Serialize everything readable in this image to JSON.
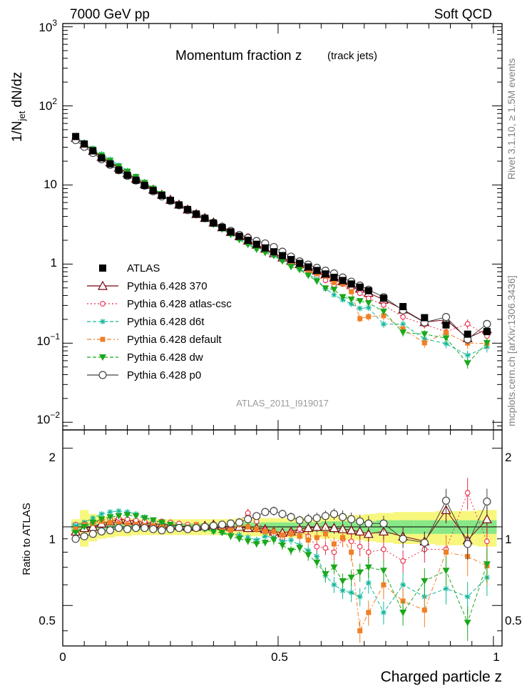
{
  "header": {
    "left": "7000 GeV pp",
    "right": "Soft QCD"
  },
  "title": {
    "main": "Momentum fraction z",
    "sub": "(track jets)"
  },
  "analysis_tag": "ATLAS_2011_I919017",
  "side_labels": {
    "rivet": "Rivet 3.1.10, ≥ 1.5M events",
    "mcplots": "mcplots.cern.ch [arXiv:1306.3436]"
  },
  "axes": {
    "ylabel_top": "1/N",
    "ylabel_top_sub": "jet",
    "ylabel_top_rest": " dN/dz",
    "ylabel_bottom": "Ratio to ATLAS",
    "xlabel": "Charged particle z",
    "top_ticks": [
      {
        "base": "10",
        "exp": "3"
      },
      {
        "base": "10",
        "exp": "2"
      },
      {
        "base": "10",
        "exp": ""
      },
      {
        "base": "1",
        "exp": ""
      },
      {
        "base": "10",
        "exp": "−1"
      },
      {
        "base": "10",
        "exp": "−2"
      }
    ],
    "x_ticks": [
      "0",
      "0.5",
      "1"
    ],
    "ratio_ticks": [
      "2",
      "1",
      "0.5"
    ]
  },
  "legend": [
    {
      "label": "ATLAS",
      "color": "#000000",
      "marker": "square-filled",
      "line": "none"
    },
    {
      "label": "Pythia 6.428 370",
      "color": "#7a0010",
      "marker": "triangle-open",
      "line": "solid"
    },
    {
      "label": "Pythia 6.428 atlas-csc",
      "color": "#e8294a",
      "marker": "circle-open-small",
      "line": "dotted"
    },
    {
      "label": "Pythia 6.428 d6t",
      "color": "#12b89a",
      "marker": "star",
      "line": "dashed"
    },
    {
      "label": "Pythia 6.428 default",
      "color": "#f07f25",
      "marker": "square-filled-small",
      "line": "dashdot"
    },
    {
      "label": "Pythia 6.428 dw",
      "color": "#1aa81a",
      "marker": "triangle-down-filled",
      "line": "dashed"
    },
    {
      "label": "Pythia 6.428 p0",
      "color": "#444444",
      "marker": "circle-open",
      "line": "solid"
    }
  ],
  "chart_data": {
    "type": "scatter",
    "xlabel": "Charged particle z",
    "ylabel": "1/N_jet dN/dz",
    "xlim": [
      0,
      1.02
    ],
    "ylim": [
      0.008,
      1100
    ],
    "yscale": "log",
    "ratio_ylim": [
      0.35,
      2.35
    ],
    "ratio_yscale": "log",
    "x": [
      0.03,
      0.05,
      0.07,
      0.09,
      0.11,
      0.13,
      0.15,
      0.17,
      0.19,
      0.21,
      0.23,
      0.25,
      0.27,
      0.29,
      0.31,
      0.33,
      0.35,
      0.37,
      0.39,
      0.41,
      0.43,
      0.45,
      0.47,
      0.49,
      0.51,
      0.53,
      0.55,
      0.57,
      0.59,
      0.61,
      0.63,
      0.65,
      0.67,
      0.69,
      0.71,
      0.745,
      0.79,
      0.84,
      0.89,
      0.94,
      0.985
    ],
    "data_values": [
      41,
      33,
      27,
      22,
      18.5,
      15.5,
      13.3,
      11.5,
      9.9,
      8.5,
      7.4,
      6.4,
      5.6,
      4.9,
      4.3,
      3.8,
      3.3,
      2.9,
      2.55,
      2.25,
      2.0,
      1.78,
      1.6,
      1.43,
      1.28,
      1.14,
      1.02,
      0.92,
      0.83,
      0.75,
      0.68,
      0.62,
      0.56,
      0.51,
      0.46,
      0.37,
      0.29,
      0.21,
      0.17,
      0.13,
      0.14
    ],
    "data_errors": [
      0.02,
      0.02,
      0.02,
      0.02,
      0.02,
      0.02,
      0.02,
      0.02,
      0.02,
      0.02,
      0.02,
      0.02,
      0.02,
      0.02,
      0.02,
      0.02,
      0.02,
      0.02,
      0.02,
      0.03,
      0.03,
      0.03,
      0.03,
      0.03,
      0.03,
      0.03,
      0.03,
      0.04,
      0.04,
      0.04,
      0.04,
      0.04,
      0.05,
      0.05,
      0.05,
      0.05,
      0.06,
      0.06,
      0.07,
      0.08,
      0.08
    ],
    "band_inner": [
      0.04,
      0.04,
      0.03,
      0.03,
      0.03,
      0.03,
      0.03,
      0.03,
      0.03,
      0.03,
      0.03,
      0.03,
      0.03,
      0.03,
      0.03,
      0.03,
      0.03,
      0.03,
      0.03,
      0.03,
      0.04,
      0.04,
      0.04,
      0.04,
      0.04,
      0.04,
      0.04,
      0.04,
      0.04,
      0.05,
      0.05,
      0.05,
      0.05,
      0.05,
      0.05,
      0.06,
      0.06,
      0.06,
      0.06,
      0.06,
      0.06
    ],
    "band_outer": [
      0.07,
      0.16,
      0.12,
      0.1,
      0.09,
      0.08,
      0.08,
      0.07,
      0.07,
      0.07,
      0.07,
      0.07,
      0.07,
      0.07,
      0.07,
      0.07,
      0.07,
      0.07,
      0.07,
      0.08,
      0.08,
      0.08,
      0.08,
      0.08,
      0.08,
      0.09,
      0.09,
      0.09,
      0.09,
      0.1,
      0.1,
      0.11,
      0.11,
      0.11,
      0.12,
      0.13,
      0.14,
      0.14,
      0.15,
      0.15,
      0.16
    ],
    "series": [
      {
        "name": "Pythia 6.428 370",
        "ratio": [
          0.96,
          0.99,
          1.0,
          1.03,
          1.05,
          1.07,
          1.06,
          1.05,
          1.04,
          1.03,
          1.02,
          1.02,
          1.01,
          1.0,
          1.0,
          1.01,
          1.02,
          1.01,
          1.0,
          1.0,
          0.99,
          0.99,
          0.98,
          0.96,
          0.95,
          0.96,
          0.98,
          0.99,
          1.0,
          1.0,
          0.99,
          0.98,
          0.97,
          0.96,
          0.94,
          0.96,
          0.92,
          0.88,
          1.16,
          0.89,
          1.07
        ],
        "rel_err": [
          0.01,
          0.01,
          0.01,
          0.01,
          0.01,
          0.01,
          0.01,
          0.01,
          0.01,
          0.01,
          0.02,
          0.02,
          0.02,
          0.02,
          0.02,
          0.02,
          0.02,
          0.02,
          0.03,
          0.03,
          0.03,
          0.03,
          0.03,
          0.04,
          0.04,
          0.04,
          0.04,
          0.05,
          0.05,
          0.05,
          0.05,
          0.06,
          0.06,
          0.06,
          0.07,
          0.07,
          0.08,
          0.09,
          0.11,
          0.13,
          0.12
        ]
      },
      {
        "name": "Pythia 6.428 atlas-csc",
        "ratio": [
          1.02,
          1.03,
          1.04,
          1.06,
          1.07,
          1.08,
          1.07,
          1.06,
          1.05,
          1.04,
          1.05,
          1.04,
          1.03,
          1.02,
          1.01,
          1.0,
          0.99,
          0.98,
          1.01,
          1.05,
          1.13,
          1.05,
          0.97,
          0.93,
          0.9,
          0.95,
          0.98,
          0.92,
          0.84,
          0.83,
          0.8,
          0.9,
          0.88,
          0.84,
          0.8,
          0.82,
          0.74,
          0.82,
          0.82,
          1.35,
          0.88
        ],
        "rel_err": [
          0.01,
          0.01,
          0.01,
          0.01,
          0.01,
          0.01,
          0.01,
          0.01,
          0.01,
          0.01,
          0.02,
          0.02,
          0.02,
          0.02,
          0.02,
          0.02,
          0.02,
          0.02,
          0.03,
          0.03,
          0.04,
          0.04,
          0.04,
          0.04,
          0.05,
          0.05,
          0.05,
          0.05,
          0.06,
          0.06,
          0.07,
          0.07,
          0.08,
          0.08,
          0.09,
          0.09,
          0.1,
          0.11,
          0.13,
          0.14,
          0.15
        ]
      },
      {
        "name": "Pythia 6.428 d6t",
        "ratio": [
          1.01,
          1.04,
          1.08,
          1.12,
          1.14,
          1.15,
          1.14,
          1.12,
          1.09,
          1.06,
          1.04,
          1.01,
          0.99,
          0.98,
          0.99,
          0.98,
          0.96,
          0.95,
          0.94,
          0.93,
          0.91,
          0.89,
          0.92,
          0.91,
          0.88,
          0.89,
          0.85,
          0.81,
          0.77,
          0.65,
          0.6,
          0.57,
          0.56,
          0.54,
          0.61,
          0.47,
          0.6,
          0.54,
          0.58,
          0.54,
          0.64
        ],
        "rel_err": [
          0.01,
          0.01,
          0.01,
          0.01,
          0.01,
          0.01,
          0.01,
          0.01,
          0.01,
          0.01,
          0.02,
          0.02,
          0.02,
          0.02,
          0.02,
          0.02,
          0.02,
          0.02,
          0.03,
          0.03,
          0.03,
          0.03,
          0.03,
          0.04,
          0.04,
          0.04,
          0.04,
          0.05,
          0.05,
          0.06,
          0.07,
          0.07,
          0.08,
          0.08,
          0.09,
          0.1,
          0.11,
          0.12,
          0.13,
          0.14,
          0.15
        ]
      },
      {
        "name": "Pythia 6.428 default",
        "ratio": [
          0.98,
          1.02,
          1.03,
          1.05,
          1.04,
          1.03,
          1.02,
          1.02,
          1.01,
          1.01,
          1.0,
          1.0,
          0.99,
          1.0,
          1.02,
          1.01,
          0.99,
          0.98,
          0.97,
          1.02,
          1.0,
          0.98,
          0.96,
          0.96,
          0.93,
          0.94,
          0.92,
          0.89,
          0.91,
          0.94,
          0.86,
          0.91,
          0.8,
          0.4,
          0.47,
          0.6,
          0.52,
          0.48,
          0.8,
          0.77,
          0.71
        ],
        "rel_err": [
          0.01,
          0.01,
          0.01,
          0.01,
          0.01,
          0.01,
          0.01,
          0.01,
          0.01,
          0.01,
          0.02,
          0.02,
          0.02,
          0.02,
          0.02,
          0.02,
          0.02,
          0.02,
          0.03,
          0.03,
          0.03,
          0.03,
          0.03,
          0.04,
          0.04,
          0.04,
          0.04,
          0.05,
          0.05,
          0.06,
          0.06,
          0.07,
          0.08,
          0.1,
          0.11,
          0.12,
          0.13,
          0.14,
          0.14,
          0.16,
          0.16
        ]
      },
      {
        "name": "Pythia 6.428 dw",
        "ratio": [
          0.95,
          1.0,
          1.04,
          1.07,
          1.09,
          1.1,
          1.11,
          1.1,
          1.08,
          1.06,
          1.04,
          1.02,
          1.0,
          0.99,
          0.99,
          0.98,
          0.96,
          0.95,
          0.92,
          0.9,
          0.88,
          0.86,
          0.87,
          0.89,
          0.85,
          0.81,
          0.83,
          0.78,
          0.73,
          0.66,
          0.7,
          0.62,
          0.64,
          0.67,
          0.7,
          0.68,
          0.47,
          0.62,
          0.68,
          0.43,
          0.72
        ],
        "rel_err": [
          0.01,
          0.01,
          0.01,
          0.01,
          0.01,
          0.01,
          0.01,
          0.01,
          0.01,
          0.01,
          0.02,
          0.02,
          0.02,
          0.02,
          0.02,
          0.02,
          0.02,
          0.02,
          0.03,
          0.03,
          0.03,
          0.03,
          0.03,
          0.04,
          0.04,
          0.04,
          0.04,
          0.05,
          0.05,
          0.06,
          0.06,
          0.07,
          0.07,
          0.08,
          0.09,
          0.1,
          0.11,
          0.12,
          0.13,
          0.15,
          0.15
        ]
      },
      {
        "name": "Pythia 6.428 p0",
        "ratio": [
          0.9,
          0.92,
          0.94,
          0.96,
          0.97,
          0.99,
          0.98,
          0.99,
          0.99,
          0.98,
          0.97,
          0.98,
          0.99,
          0.98,
          0.99,
          1.0,
          1.01,
          1.02,
          1.03,
          1.04,
          1.07,
          1.1,
          1.14,
          1.15,
          1.12,
          1.09,
          1.06,
          1.07,
          1.08,
          1.1,
          1.12,
          1.09,
          1.07,
          1.05,
          1.03,
          1.03,
          0.9,
          0.87,
          1.26,
          0.86,
          1.25
        ],
        "rel_err": [
          0.01,
          0.01,
          0.01,
          0.01,
          0.01,
          0.01,
          0.01,
          0.01,
          0.01,
          0.01,
          0.02,
          0.02,
          0.02,
          0.02,
          0.02,
          0.02,
          0.02,
          0.02,
          0.03,
          0.03,
          0.03,
          0.03,
          0.03,
          0.04,
          0.04,
          0.04,
          0.04,
          0.05,
          0.05,
          0.05,
          0.05,
          0.06,
          0.06,
          0.06,
          0.07,
          0.07,
          0.08,
          0.09,
          0.11,
          0.13,
          0.12
        ]
      }
    ]
  }
}
